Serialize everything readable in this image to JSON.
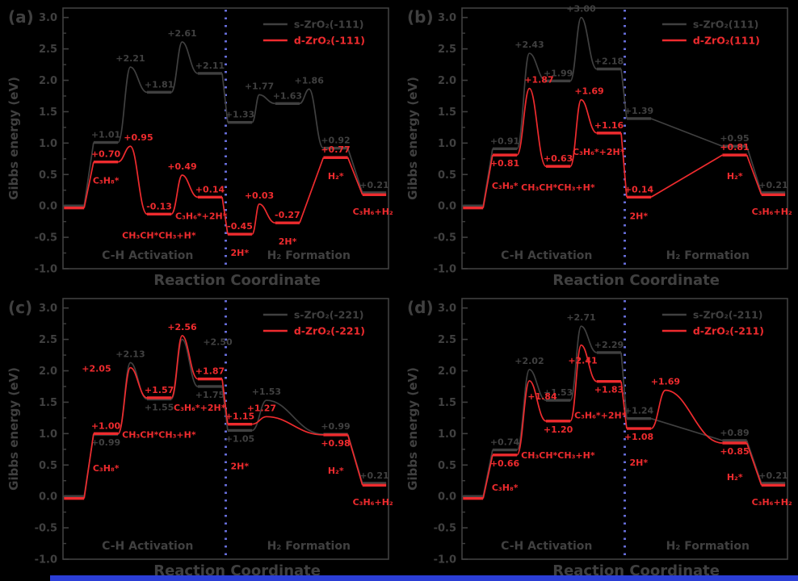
{
  "figure": {
    "xlabel": "Reaction Coordinate",
    "ylabel": "Gibbs energy (eV)",
    "sections": [
      "C-H Activation",
      "H₂ Formation"
    ]
  },
  "colors": {
    "background": "#000000",
    "foreground": "#404040",
    "red": "#ee2b2e",
    "divider": "#666dd8",
    "bottom_bar": "#2b3ed6"
  },
  "chart_data": [
    {
      "type": "line",
      "panel": "a",
      "panel_label": "(a)",
      "ylim": [
        -1.0,
        3.15
      ],
      "yticks": [
        3.0,
        2.5,
        2.0,
        1.5,
        1.0,
        0.5,
        0.0,
        -0.5,
        -1.0
      ],
      "legend": [
        {
          "label": "s-ZrO₂(-111)",
          "color_key": "foreground"
        },
        {
          "label": "d-ZrO₂(-111)",
          "color_key": "red"
        }
      ],
      "series": [
        {
          "name": "s-ZrO₂(-111)",
          "color_key": "foreground",
          "steps": [
            {
              "k": "lvl",
              "x": 0.003,
              "w": 0.062,
              "e": 0.0
            },
            {
              "k": "lvl",
              "x": 0.094,
              "w": 0.075,
              "e": 1.01,
              "lab": "+1.01"
            },
            {
              "k": "ts",
              "x": 0.207,
              "e": 2.21,
              "lab": "+2.21"
            },
            {
              "k": "lvl",
              "x": 0.258,
              "w": 0.075,
              "e": 1.81,
              "lab": "+1.81"
            },
            {
              "k": "ts",
              "x": 0.366,
              "e": 2.61,
              "lab": "+2.61"
            },
            {
              "k": "lvl",
              "x": 0.414,
              "w": 0.075,
              "e": 2.11,
              "lab": "+2.11"
            },
            {
              "k": "lvl",
              "x": 0.506,
              "w": 0.075,
              "e": 1.33,
              "lab": "+1.33"
            },
            {
              "k": "ts",
              "x": 0.603,
              "e": 1.77,
              "lab": "+1.77"
            },
            {
              "k": "lvl",
              "x": 0.652,
              "w": 0.075,
              "e": 1.63,
              "lab": "+1.63"
            },
            {
              "k": "ts",
              "x": 0.756,
              "e": 1.86,
              "lab": "+1.86"
            },
            {
              "k": "lvl",
              "x": 0.8,
              "w": 0.075,
              "e": 0.92,
              "lab": "+0.92"
            },
            {
              "k": "lvl",
              "x": 0.92,
              "w": 0.073,
              "e": 0.21,
              "lab": "+0.21"
            }
          ]
        },
        {
          "name": "d-ZrO₂(-111)",
          "color_key": "red",
          "steps": [
            {
              "k": "lvl",
              "x": 0.003,
              "w": 0.062,
              "e": 0.0,
              "yoff": 2.5
            },
            {
              "k": "lvl",
              "x": 0.094,
              "w": 0.075,
              "e": 0.7,
              "lab": "+0.70"
            },
            {
              "k": "ts",
              "x": 0.207,
              "e": 0.95,
              "lab": "+0.95",
              "dx": 10
            },
            {
              "k": "lvl",
              "x": 0.258,
              "w": 0.075,
              "e": -0.13,
              "lab": "-0.13"
            },
            {
              "k": "ts",
              "x": 0.366,
              "e": 0.49,
              "lab": "+0.49"
            },
            {
              "k": "lvl",
              "x": 0.414,
              "w": 0.075,
              "e": 0.14,
              "lab": "+0.14"
            },
            {
              "k": "lvl",
              "x": 0.506,
              "w": 0.075,
              "e": -0.45,
              "lab": "-0.45"
            },
            {
              "k": "ts",
              "x": 0.603,
              "e": 0.03,
              "lab": "+0.03"
            },
            {
              "k": "lvl",
              "x": 0.652,
              "w": 0.075,
              "e": -0.27,
              "lab": "-0.27"
            },
            {
              "k": "lvl",
              "x": 0.8,
              "w": 0.075,
              "e": 0.77,
              "lab": "+0.77"
            },
            {
              "k": "lvl",
              "x": 0.92,
              "w": 0.073,
              "e": 0.21,
              "yoff": 2.5
            }
          ]
        }
      ],
      "species_labels": [
        {
          "text": "C₃H₈*",
          "x": 0.132,
          "e": 0.7,
          "dy": 27
        },
        {
          "text": "CH₃CH*CH₃+H*",
          "x": 0.295,
          "e": -0.13,
          "dy": 30
        },
        {
          "text": "C₃H₆*+2H*",
          "x": 0.425,
          "e": 0.14,
          "dy": 27
        },
        {
          "text": "2H*",
          "x": 0.543,
          "e": -0.45,
          "dy": 27
        },
        {
          "text": "2H*",
          "x": 0.69,
          "e": -0.27,
          "dy": 27
        },
        {
          "text": "H₂*",
          "x": 0.838,
          "e": 0.77,
          "dy": 27
        },
        {
          "text": "C₃H₆+H₂",
          "x": 0.952,
          "e": 0.21,
          "dy": 27
        }
      ]
    },
    {
      "type": "line",
      "panel": "b",
      "panel_label": "(b)",
      "ylim": [
        -1.0,
        3.15
      ],
      "yticks": [
        3.0,
        2.5,
        2.0,
        1.5,
        1.0,
        0.5,
        0.0,
        -0.5,
        -1.0
      ],
      "legend": [
        {
          "label": "s-ZrO₂(111)",
          "color_key": "foreground"
        },
        {
          "label": "d-ZrO₂(111)",
          "color_key": "red"
        }
      ],
      "series": [
        {
          "name": "s-ZrO₂(111)",
          "color_key": "foreground",
          "steps": [
            {
              "k": "lvl",
              "x": 0.003,
              "w": 0.062,
              "e": 0.0
            },
            {
              "k": "lvl",
              "x": 0.094,
              "w": 0.075,
              "e": 0.91,
              "lab": "+0.91"
            },
            {
              "k": "ts",
              "x": 0.207,
              "e": 2.43,
              "lab": "+2.43"
            },
            {
              "k": "lvl",
              "x": 0.258,
              "w": 0.075,
              "e": 1.99,
              "lab": "+1.99"
            },
            {
              "k": "ts",
              "x": 0.366,
              "e": 3.0,
              "lab": "+3.00"
            },
            {
              "k": "lvl",
              "x": 0.414,
              "w": 0.075,
              "e": 2.18,
              "lab": "+2.18"
            },
            {
              "k": "lvl",
              "x": 0.506,
              "w": 0.075,
              "e": 1.39,
              "lab": "+1.39"
            },
            {
              "k": "lvl",
              "x": 0.8,
              "w": 0.075,
              "e": 0.95,
              "lab": "+0.95"
            },
            {
              "k": "lvl",
              "x": 0.92,
              "w": 0.073,
              "e": 0.21,
              "lab": "+0.21"
            }
          ]
        },
        {
          "name": "d-ZrO₂(111)",
          "color_key": "red",
          "steps": [
            {
              "k": "lvl",
              "x": 0.003,
              "w": 0.062,
              "e": 0.0,
              "yoff": 2.5
            },
            {
              "k": "lvl",
              "x": 0.094,
              "w": 0.075,
              "e": 0.81,
              "lab": "+0.81",
              "lp": "b"
            },
            {
              "k": "ts",
              "x": 0.207,
              "e": 1.87,
              "lab": "+1.87",
              "dx": 12
            },
            {
              "k": "lvl",
              "x": 0.258,
              "w": 0.075,
              "e": 0.63,
              "lab": "+0.63"
            },
            {
              "k": "ts",
              "x": 0.366,
              "e": 1.69,
              "lab": "+1.69",
              "dx": 10
            },
            {
              "k": "lvl",
              "x": 0.414,
              "w": 0.075,
              "e": 1.16,
              "lab": "+1.16"
            },
            {
              "k": "lvl",
              "x": 0.506,
              "w": 0.075,
              "e": 0.14,
              "lab": "+0.14"
            },
            {
              "k": "lvl",
              "x": 0.8,
              "w": 0.075,
              "e": 0.81,
              "lab": "+0.81"
            },
            {
              "k": "lvl",
              "x": 0.92,
              "w": 0.073,
              "e": 0.21,
              "yoff": 2.5
            }
          ]
        }
      ],
      "species_labels": [
        {
          "text": "C₃H₈*",
          "x": 0.132,
          "e": 0.81,
          "dy": 42
        },
        {
          "text": "CH₃CH*CH₃+H*",
          "x": 0.295,
          "e": 0.63,
          "dy": 30
        },
        {
          "text": "C₃H₆*+2H*",
          "x": 0.42,
          "e": 1.16,
          "dy": 27
        },
        {
          "text": "2H*",
          "x": 0.543,
          "e": 0.14,
          "dy": 27
        },
        {
          "text": "H₂*",
          "x": 0.838,
          "e": 0.81,
          "dy": 30
        },
        {
          "text": "C₃H₆+H₂",
          "x": 0.952,
          "e": 0.21,
          "dy": 27
        }
      ]
    },
    {
      "type": "line",
      "panel": "c",
      "panel_label": "(c)",
      "ylim": [
        -1.0,
        3.15
      ],
      "yticks": [
        3.0,
        2.5,
        2.0,
        1.5,
        1.0,
        0.5,
        0.0,
        -0.5,
        -1.0
      ],
      "legend": [
        {
          "label": "s-ZrO₂(-221)",
          "color_key": "foreground"
        },
        {
          "label": "d-ZrO₂(-221)",
          "color_key": "red"
        }
      ],
      "series": [
        {
          "name": "s-ZrO₂(-221)",
          "color_key": "foreground",
          "steps": [
            {
              "k": "lvl",
              "x": 0.003,
              "w": 0.062,
              "e": 0.0
            },
            {
              "k": "lvl",
              "x": 0.094,
              "w": 0.075,
              "e": 0.99,
              "lab": "+0.99",
              "lp": "b"
            },
            {
              "k": "ts",
              "x": 0.207,
              "e": 2.13,
              "lab": "+2.13"
            },
            {
              "k": "lvl",
              "x": 0.258,
              "w": 0.075,
              "e": 1.55,
              "lab": "+1.55",
              "lp": "b"
            },
            {
              "k": "ts",
              "x": 0.366,
              "e": 2.5,
              "lab": "+2.50",
              "dx": 44,
              "dy": 14
            },
            {
              "k": "lvl",
              "x": 0.414,
              "w": 0.075,
              "e": 1.75,
              "lab": "+1.75",
              "lp": "b"
            },
            {
              "k": "lvl",
              "x": 0.506,
              "w": 0.075,
              "e": 1.05,
              "lab": "+1.05",
              "lp": "b"
            },
            {
              "k": "ts",
              "x": 0.625,
              "e": 1.53,
              "lab": "+1.53"
            },
            {
              "k": "lvl",
              "x": 0.8,
              "w": 0.075,
              "e": 0.99,
              "lab": "+0.99"
            },
            {
              "k": "lvl",
              "x": 0.92,
              "w": 0.073,
              "e": 0.21,
              "lab": "+0.21"
            }
          ]
        },
        {
          "name": "d-ZrO₂(-221)",
          "color_key": "red",
          "steps": [
            {
              "k": "lvl",
              "x": 0.003,
              "w": 0.062,
              "e": 0.0,
              "yoff": 2.5
            },
            {
              "k": "lvl",
              "x": 0.094,
              "w": 0.075,
              "e": 1.0,
              "lab": "+1.00"
            },
            {
              "k": "ts",
              "x": 0.207,
              "e": 2.05,
              "lab": "+2.05",
              "dx": -42,
              "dy": 12
            },
            {
              "k": "lvl",
              "x": 0.258,
              "w": 0.075,
              "e": 1.57,
              "lab": "+1.57"
            },
            {
              "k": "ts",
              "x": 0.366,
              "e": 2.56,
              "lab": "+2.56"
            },
            {
              "k": "lvl",
              "x": 0.414,
              "w": 0.075,
              "e": 1.87,
              "lab": "+1.87"
            },
            {
              "k": "lvl",
              "x": 0.506,
              "w": 0.075,
              "e": 1.15,
              "lab": "+1.15"
            },
            {
              "k": "ts",
              "x": 0.625,
              "e": 1.27,
              "lab": "+1.27",
              "dx": -6
            },
            {
              "k": "lvl",
              "x": 0.8,
              "w": 0.075,
              "e": 0.98,
              "lab": "+0.98",
              "lp": "b"
            },
            {
              "k": "lvl",
              "x": 0.92,
              "w": 0.073,
              "e": 0.21,
              "yoff": 2.5
            }
          ]
        }
      ],
      "species_labels": [
        {
          "text": "C₃H₈*",
          "x": 0.132,
          "e": 0.99,
          "dy": 46
        },
        {
          "text": "CH₃CH*CH₃+H*",
          "x": 0.295,
          "e": 1.55,
          "dy": 48
        },
        {
          "text": "C₃H₆*+2H*",
          "x": 0.42,
          "e": 1.75,
          "dy": 30
        },
        {
          "text": "2H*",
          "x": 0.543,
          "e": 1.05,
          "dy": 48
        },
        {
          "text": "H₂*",
          "x": 0.838,
          "e": 0.98,
          "dy": 48
        },
        {
          "text": "C₃H₆+H₂",
          "x": 0.952,
          "e": 0.21,
          "dy": 27
        }
      ]
    },
    {
      "type": "line",
      "panel": "d",
      "panel_label": "(d)",
      "ylim": [
        -1.0,
        3.15
      ],
      "yticks": [
        3.0,
        2.5,
        2.0,
        1.5,
        1.0,
        0.5,
        0.0,
        -0.5,
        -1.0
      ],
      "legend": [
        {
          "label": "s-ZrO₂(-211)",
          "color_key": "foreground"
        },
        {
          "label": "d-ZrO₂(-211)",
          "color_key": "red"
        }
      ],
      "series": [
        {
          "name": "s-ZrO₂(-211)",
          "color_key": "foreground",
          "steps": [
            {
              "k": "lvl",
              "x": 0.003,
              "w": 0.062,
              "e": 0.0
            },
            {
              "k": "lvl",
              "x": 0.094,
              "w": 0.075,
              "e": 0.74,
              "lab": "+0.74"
            },
            {
              "k": "ts",
              "x": 0.207,
              "e": 2.02,
              "lab": "+2.02"
            },
            {
              "k": "lvl",
              "x": 0.258,
              "w": 0.075,
              "e": 1.53,
              "lab": "+1.53"
            },
            {
              "k": "ts",
              "x": 0.366,
              "e": 2.71,
              "lab": "+2.71"
            },
            {
              "k": "lvl",
              "x": 0.414,
              "w": 0.075,
              "e": 2.29,
              "lab": "+2.29"
            },
            {
              "k": "lvl",
              "x": 0.506,
              "w": 0.075,
              "e": 1.24,
              "lab": "+1.24"
            },
            {
              "k": "lvl",
              "x": 0.8,
              "w": 0.075,
              "e": 0.89,
              "lab": "+0.89"
            },
            {
              "k": "lvl",
              "x": 0.92,
              "w": 0.073,
              "e": 0.21,
              "lab": "+0.21"
            }
          ]
        },
        {
          "name": "d-ZrO₂(-211)",
          "color_key": "red",
          "steps": [
            {
              "k": "lvl",
              "x": 0.003,
              "w": 0.062,
              "e": 0.0,
              "yoff": 2.5
            },
            {
              "k": "lvl",
              "x": 0.094,
              "w": 0.075,
              "e": 0.66,
              "lab": "+0.66",
              "lp": "b"
            },
            {
              "k": "ts",
              "x": 0.207,
              "e": 1.84,
              "lab": "+1.84",
              "dx": 16,
              "dy": 30
            },
            {
              "k": "lvl",
              "x": 0.258,
              "w": 0.075,
              "e": 1.2,
              "lab": "+1.20",
              "lp": "b"
            },
            {
              "k": "ts",
              "x": 0.366,
              "e": 2.41,
              "lab": "+2.41",
              "dx": 2,
              "dy": 30
            },
            {
              "k": "lvl",
              "x": 0.414,
              "w": 0.075,
              "e": 1.83,
              "lab": "+1.83",
              "lp": "b"
            },
            {
              "k": "lvl",
              "x": 0.506,
              "w": 0.075,
              "e": 1.08,
              "lab": "+1.08",
              "lp": "b"
            },
            {
              "k": "ts",
              "x": 0.625,
              "e": 1.69,
              "lab": "+1.69"
            },
            {
              "k": "lvl",
              "x": 0.8,
              "w": 0.075,
              "e": 0.85,
              "lab": "+0.85",
              "lp": "b"
            },
            {
              "k": "lvl",
              "x": 0.92,
              "w": 0.073,
              "e": 0.21,
              "yoff": 2.5
            }
          ]
        }
      ],
      "species_labels": [
        {
          "text": "C₃H₈*",
          "x": 0.132,
          "e": 0.66,
          "dy": 44
        },
        {
          "text": "CH₃CH*CH₃+H*",
          "x": 0.295,
          "e": 1.2,
          "dy": 46
        },
        {
          "text": "C₃H₆*+2H*",
          "x": 0.425,
          "e": 1.83,
          "dy": 46
        },
        {
          "text": "2H*",
          "x": 0.543,
          "e": 1.08,
          "dy": 46
        },
        {
          "text": "H₂*",
          "x": 0.838,
          "e": 0.85,
          "dy": 46
        },
        {
          "text": "C₃H₆+H₂",
          "x": 0.952,
          "e": 0.21,
          "dy": 27
        }
      ]
    }
  ]
}
